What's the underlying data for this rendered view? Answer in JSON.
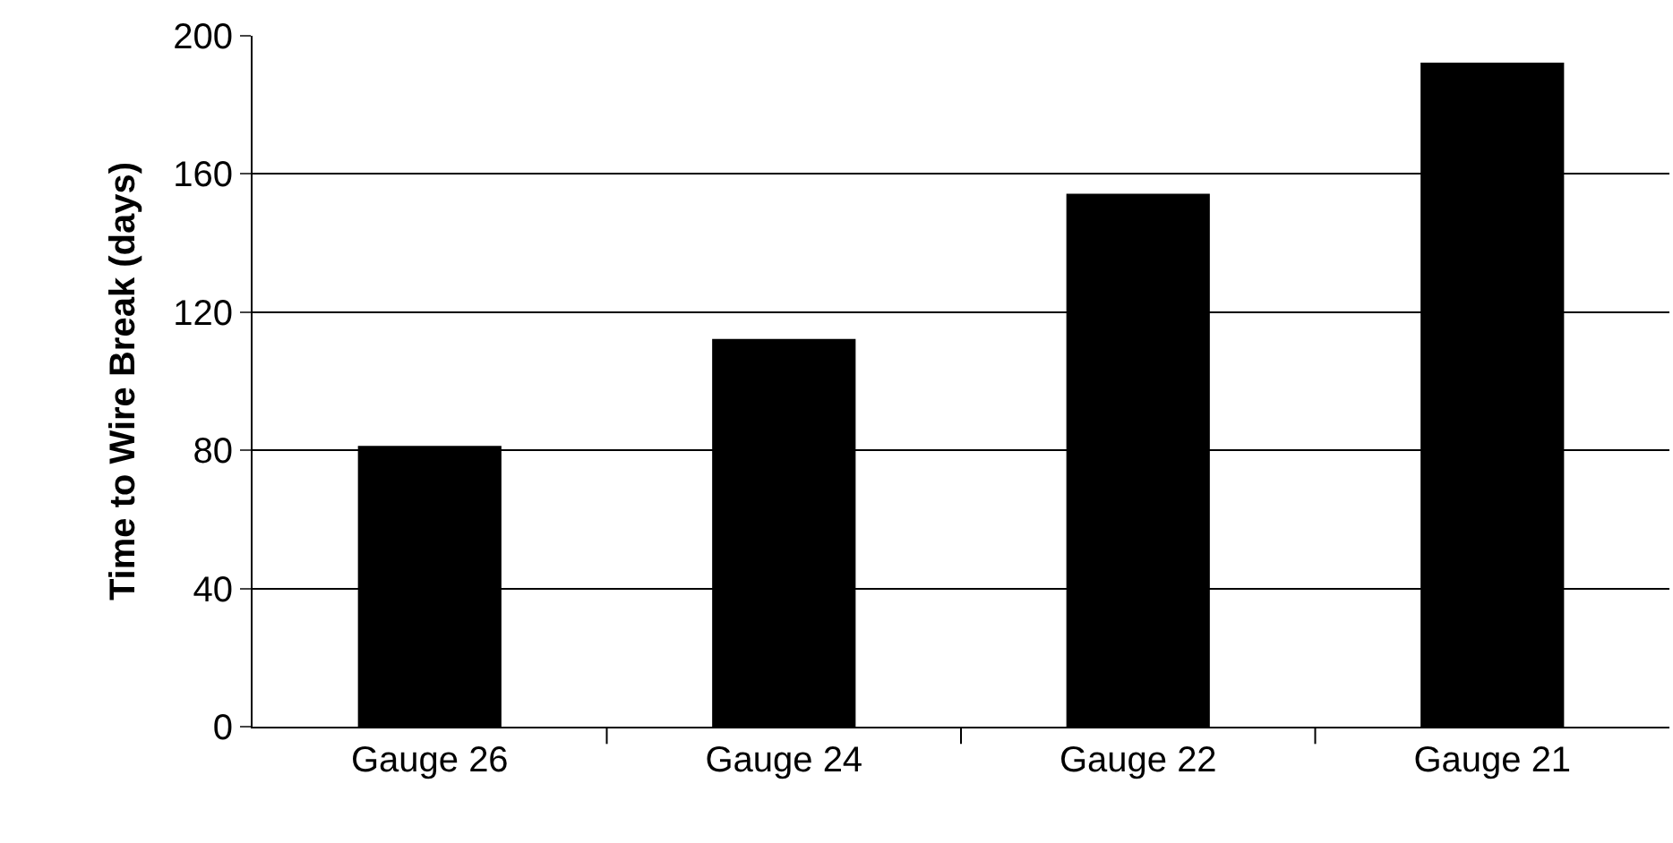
{
  "chart_data": {
    "type": "bar",
    "ylabel": "Time to Wire Break (days)",
    "categories": [
      "Gauge 26",
      "Gauge 24",
      "Gauge 22",
      "Gauge 21"
    ],
    "values": [
      81,
      112,
      154,
      192
    ],
    "color": "#000000",
    "ylim": [
      0,
      200
    ],
    "yticks": [
      0,
      40,
      80,
      120,
      160,
      200
    ],
    "grid": "y",
    "legend": false
  }
}
